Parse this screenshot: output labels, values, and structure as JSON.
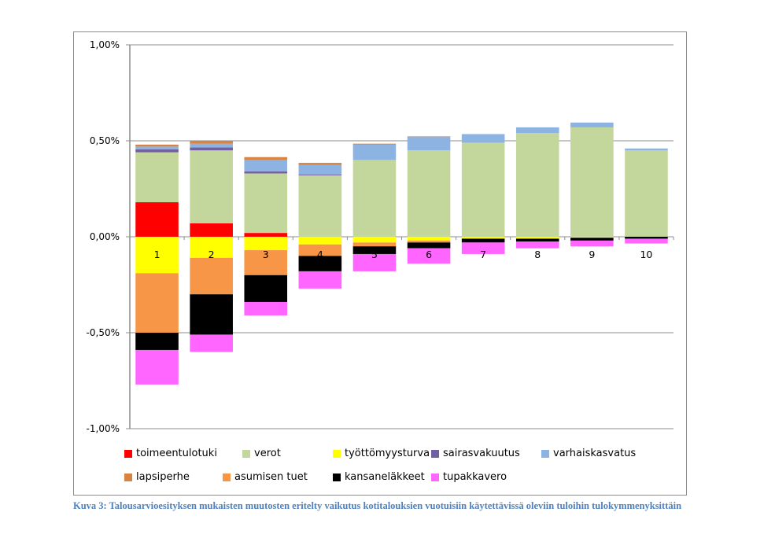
{
  "chart_data": {
    "type": "bar",
    "stacked": true,
    "title": "",
    "xlabel": "",
    "ylabel": "",
    "ylim": [
      -1.0,
      1.0
    ],
    "yticks": [
      1.0,
      0.5,
      0.0,
      -0.5,
      -1.0
    ],
    "ytick_labels": [
      "1,00%",
      "0,50%",
      "0,00%",
      "-0,50%",
      "-1,00%"
    ],
    "grid": true,
    "legend_position": "bottom",
    "categories": [
      "1",
      "2",
      "3",
      "4",
      "5",
      "6",
      "7",
      "8",
      "9",
      "10"
    ],
    "series": [
      {
        "name": "toimeentulotuki",
        "color": "#ff0000",
        "values": [
          0.18,
          0.07,
          0.02,
          0.0,
          0.0,
          0.0,
          0.0,
          0.0,
          0.0,
          0.0
        ]
      },
      {
        "name": "verot",
        "color": "#c3d69b",
        "values": [
          0.26,
          0.38,
          0.31,
          0.32,
          0.4,
          0.45,
          0.49,
          0.54,
          0.57,
          0.45
        ]
      },
      {
        "name": "työttömyysturva",
        "color": "#ffff00",
        "values": [
          -0.19,
          -0.11,
          -0.07,
          -0.04,
          -0.03,
          -0.02,
          -0.01,
          -0.01,
          -0.005,
          0.0
        ]
      },
      {
        "name": "sairasvakuutus",
        "color": "#7060a0",
        "values": [
          0.015,
          0.015,
          0.01,
          0.005,
          0.0,
          0.0,
          0.0,
          0.0,
          0.0,
          0.0
        ]
      },
      {
        "name": "varhaiskasvatus",
        "color": "#8db3e2",
        "values": [
          0.015,
          0.02,
          0.06,
          0.05,
          0.08,
          0.07,
          0.045,
          0.03,
          0.025,
          0.01
        ]
      },
      {
        "name": "lapsiperhe",
        "color": "#d6843f",
        "values": [
          0.01,
          0.015,
          0.015,
          0.01,
          0.005,
          0.003,
          0.0,
          0.0,
          0.0,
          0.0
        ]
      },
      {
        "name": "asumisen tuet",
        "color": "#f79646",
        "values": [
          -0.31,
          -0.19,
          -0.13,
          -0.06,
          -0.02,
          -0.01,
          0.0,
          0.0,
          0.0,
          0.0
        ]
      },
      {
        "name": "kansaneläkkeet",
        "color": "#000000",
        "values": [
          -0.09,
          -0.21,
          -0.14,
          -0.08,
          -0.04,
          -0.03,
          -0.02,
          -0.015,
          -0.015,
          -0.01
        ]
      },
      {
        "name": "tupakkavero",
        "color": "#ff66ff",
        "values": [
          -0.18,
          -0.09,
          -0.07,
          -0.09,
          -0.09,
          -0.08,
          -0.06,
          -0.035,
          -0.03,
          -0.025
        ]
      }
    ],
    "legend_rows": [
      [
        "toimeentulotuki",
        "verot",
        "työttömyysturva",
        "sairasvakuutus",
        "varhaiskasvatus"
      ],
      [
        "lapsiperhe",
        "asumisen tuet",
        "kansaneläkkeet",
        "tupakkavero"
      ]
    ]
  },
  "caption": "Kuva 3: Talousarvioesityksen mukaisten muutosten eritelty vaikutus kotitalouksien vuotuisiin käytettävissä oleviin tuloihin tulokymmenyksittäin"
}
